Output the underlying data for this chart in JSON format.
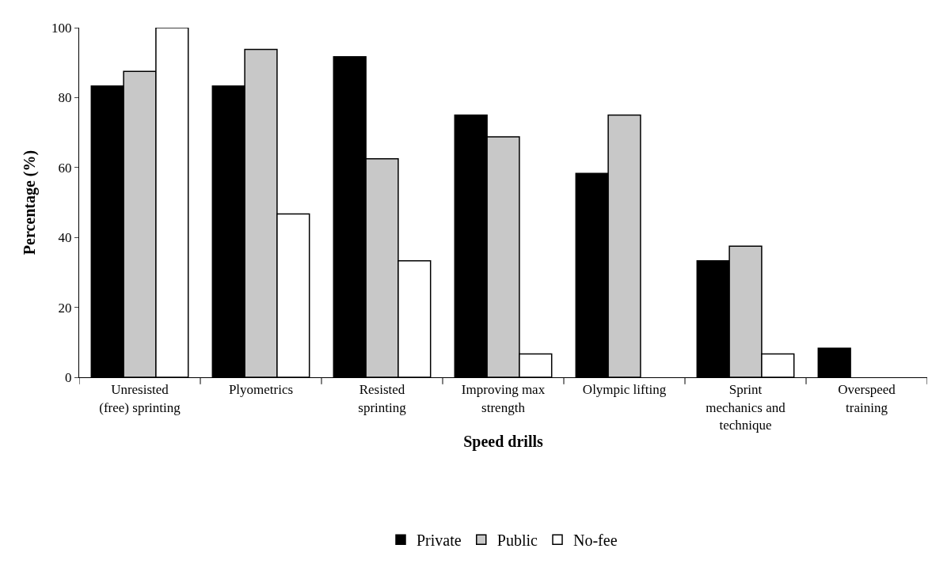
{
  "chart_data": {
    "type": "bar",
    "xlabel": "Speed drills",
    "ylabel": "Percentage (%)",
    "categories": [
      "Unresisted\n(free) sprinting",
      "Plyometrics",
      "Resisted\nsprinting",
      "Improving max\nstrength",
      "Olympic lifting",
      "Sprint\nmechanics and\ntechnique",
      "Overspeed\ntraining"
    ],
    "series": [
      {
        "name": "Private",
        "color": "#000000",
        "values": [
          83.3,
          83.3,
          91.7,
          75,
          58.3,
          33.3,
          8.3
        ]
      },
      {
        "name": "Public",
        "color": "#c8c8c8",
        "values": [
          87.5,
          93.8,
          62.5,
          68.8,
          75,
          37.5,
          0
        ]
      },
      {
        "name": "No-fee",
        "color": "#ffffff",
        "values": [
          100,
          46.7,
          33.3,
          6.7,
          0,
          6.7,
          0
        ]
      }
    ],
    "ylim": [
      0,
      100
    ],
    "yticks": [
      0,
      20,
      40,
      60,
      80,
      100
    ],
    "legend": "bottom"
  }
}
